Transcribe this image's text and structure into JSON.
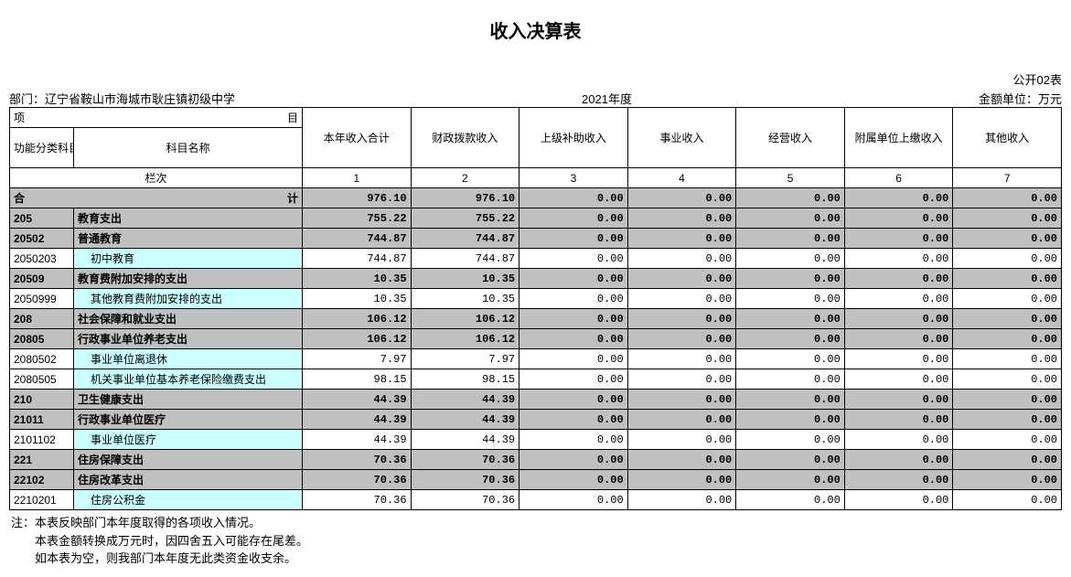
{
  "title": "收入决算表",
  "form_no": "公开02表",
  "dept_label": "部门：",
  "dept": "辽宁省鞍山市海城市耿庄镇初级中学",
  "year": "2021年度",
  "unit": "金额单位：万元",
  "header": {
    "proj": "项",
    "mu": "目",
    "code_label": "功能分类科目编码",
    "name_label": "科目名称",
    "lanci": "栏次",
    "cols": [
      "本年收入合计",
      "财政拨款收入",
      "上级补助收入",
      "事业收入",
      "经营收入",
      "附属单位上缴收入",
      "其他收入"
    ],
    "colnums": [
      "1",
      "2",
      "3",
      "4",
      "5",
      "6",
      "7"
    ]
  },
  "total_label": "合",
  "total_label2": "计",
  "rows": [
    {
      "bold": true,
      "code": "",
      "name": "",
      "vals": [
        "976.10",
        "976.10",
        "0.00",
        "0.00",
        "0.00",
        "0.00",
        "0.00"
      ],
      "is_total": true
    },
    {
      "bold": true,
      "code": "205",
      "name": "教育支出",
      "vals": [
        "755.22",
        "755.22",
        "0.00",
        "0.00",
        "0.00",
        "0.00",
        "0.00"
      ]
    },
    {
      "bold": true,
      "code": "20502",
      "name": "普通教育",
      "vals": [
        "744.87",
        "744.87",
        "0.00",
        "0.00",
        "0.00",
        "0.00",
        "0.00"
      ]
    },
    {
      "bold": false,
      "code": "2050203",
      "name": "初中教育",
      "indent": true,
      "cyan": true,
      "vals": [
        "744.87",
        "744.87",
        "0.00",
        "0.00",
        "0.00",
        "0.00",
        "0.00"
      ]
    },
    {
      "bold": true,
      "code": "20509",
      "name": "教育费附加安排的支出",
      "vals": [
        "10.35",
        "10.35",
        "0.00",
        "0.00",
        "0.00",
        "0.00",
        "0.00"
      ]
    },
    {
      "bold": false,
      "code": "2050999",
      "name": "其他教育费附加安排的支出",
      "indent": true,
      "cyan": true,
      "vals": [
        "10.35",
        "10.35",
        "0.00",
        "0.00",
        "0.00",
        "0.00",
        "0.00"
      ]
    },
    {
      "bold": true,
      "code": "208",
      "name": "社会保障和就业支出",
      "vals": [
        "106.12",
        "106.12",
        "0.00",
        "0.00",
        "0.00",
        "0.00",
        "0.00"
      ]
    },
    {
      "bold": true,
      "code": "20805",
      "name": "行政事业单位养老支出",
      "vals": [
        "106.12",
        "106.12",
        "0.00",
        "0.00",
        "0.00",
        "0.00",
        "0.00"
      ]
    },
    {
      "bold": false,
      "code": "2080502",
      "name": "事业单位离退休",
      "indent": true,
      "cyan": true,
      "vals": [
        "7.97",
        "7.97",
        "0.00",
        "0.00",
        "0.00",
        "0.00",
        "0.00"
      ]
    },
    {
      "bold": false,
      "code": "2080505",
      "name": "机关事业单位基本养老保险缴费支出",
      "indent": true,
      "cyan": true,
      "vals": [
        "98.15",
        "98.15",
        "0.00",
        "0.00",
        "0.00",
        "0.00",
        "0.00"
      ]
    },
    {
      "bold": true,
      "code": "210",
      "name": "卫生健康支出",
      "vals": [
        "44.39",
        "44.39",
        "0.00",
        "0.00",
        "0.00",
        "0.00",
        "0.00"
      ]
    },
    {
      "bold": true,
      "code": "21011",
      "name": "行政事业单位医疗",
      "vals": [
        "44.39",
        "44.39",
        "0.00",
        "0.00",
        "0.00",
        "0.00",
        "0.00"
      ]
    },
    {
      "bold": false,
      "code": "2101102",
      "name": "事业单位医疗",
      "indent": true,
      "cyan": true,
      "vals": [
        "44.39",
        "44.39",
        "0.00",
        "0.00",
        "0.00",
        "0.00",
        "0.00"
      ]
    },
    {
      "bold": true,
      "code": "221",
      "name": "住房保障支出",
      "vals": [
        "70.36",
        "70.36",
        "0.00",
        "0.00",
        "0.00",
        "0.00",
        "0.00"
      ]
    },
    {
      "bold": true,
      "code": "22102",
      "name": "住房改革支出",
      "vals": [
        "70.36",
        "70.36",
        "0.00",
        "0.00",
        "0.00",
        "0.00",
        "0.00"
      ]
    },
    {
      "bold": false,
      "code": "2210201",
      "name": "住房公积金",
      "indent": true,
      "cyan": true,
      "vals": [
        "70.36",
        "70.36",
        "0.00",
        "0.00",
        "0.00",
        "0.00",
        "0.00"
      ]
    }
  ],
  "notes": [
    "注：本表反映部门本年度取得的各项收入情况。",
    "本表金额转换成万元时，因四舍五入可能存在尾差。",
    "如本表为空，则我部门本年度无此类资金收支余。"
  ]
}
